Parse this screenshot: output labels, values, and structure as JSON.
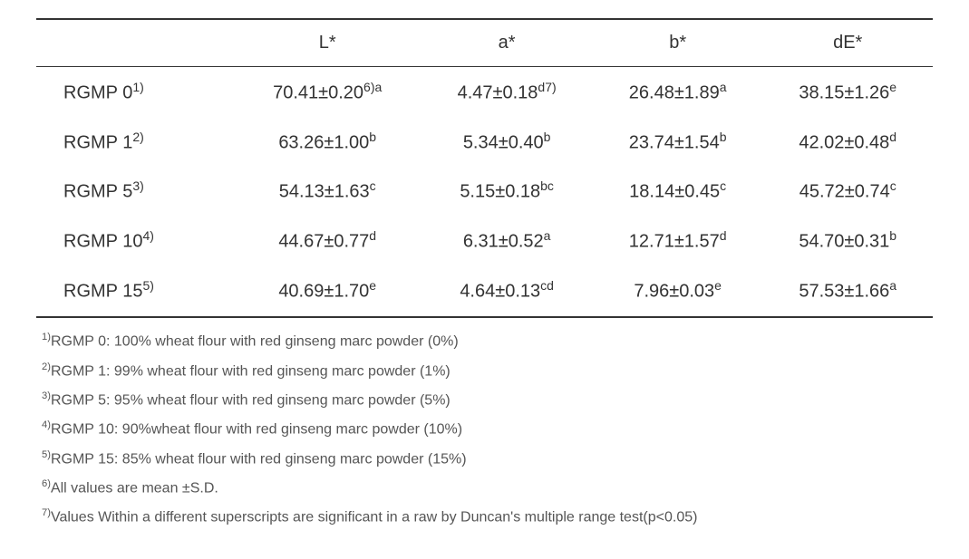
{
  "table": {
    "headers": [
      "",
      "L*",
      "a*",
      "b*",
      "dE*"
    ],
    "rows": [
      {
        "label_pre": "RGMP 0",
        "label_sup": "1)",
        "c1_pre": "70.41±0.20",
        "c1_sup": "6)a",
        "c2_pre": "4.47±0.18",
        "c2_sup": "d7)",
        "c3_pre": "26.48±1.89",
        "c3_sup": "a",
        "c4_pre": "38.15±1.26",
        "c4_sup": "e"
      },
      {
        "label_pre": "RGMP 1",
        "label_sup": "2)",
        "c1_pre": "63.26±1.00",
        "c1_sup": "b",
        "c2_pre": "5.34±0.40",
        "c2_sup": "b",
        "c3_pre": "23.74±1.54",
        "c3_sup": "b",
        "c4_pre": "42.02±0.48",
        "c4_sup": "d"
      },
      {
        "label_pre": "RGMP 5",
        "label_sup": "3)",
        "c1_pre": "54.13±1.63",
        "c1_sup": "c",
        "c2_pre": "5.15±0.18",
        "c2_sup": "bc",
        "c3_pre": "18.14±0.45",
        "c3_sup": "c",
        "c4_pre": "45.72±0.74",
        "c4_sup": "c"
      },
      {
        "label_pre": "RGMP 10",
        "label_sup": "4)",
        "c1_pre": "44.67±0.77",
        "c1_sup": "d",
        "c2_pre": "6.31±0.52",
        "c2_sup": "a",
        "c3_pre": "12.71±1.57",
        "c3_sup": "d",
        "c4_pre": "54.70±0.31",
        "c4_sup": "b"
      },
      {
        "label_pre": "RGMP 15",
        "label_sup": "5)",
        "c1_pre": "40.69±1.70",
        "c1_sup": "e",
        "c2_pre": "4.64±0.13",
        "c2_sup": "cd",
        "c3_pre": "7.96±0.03",
        "c3_sup": "e",
        "c4_pre": "57.53±1.66",
        "c4_sup": "a"
      }
    ]
  },
  "footnotes": [
    {
      "sup": "1)",
      "text": "RGMP 0: 100% wheat flour with red ginseng marc powder (0%)"
    },
    {
      "sup": "2)",
      "text": "RGMP 1: 99% wheat flour with red ginseng marc powder (1%)"
    },
    {
      "sup": "3)",
      "text": "RGMP 5: 95% wheat flour  with red ginseng marc powder (5%)"
    },
    {
      "sup": "4)",
      "text": "RGMP 10: 90%wheat flour with red ginseng marc powder (10%)"
    },
    {
      "sup": "5)",
      "text": "RGMP 15: 85% wheat flour with red ginseng marc powder (15%)"
    },
    {
      "sup": "6)",
      "text": "All values are mean ±S.D."
    },
    {
      "sup": "7)",
      "text": "Values Within a different superscripts are significant in a raw by Duncan's multiple range test(p<0.05)"
    }
  ]
}
